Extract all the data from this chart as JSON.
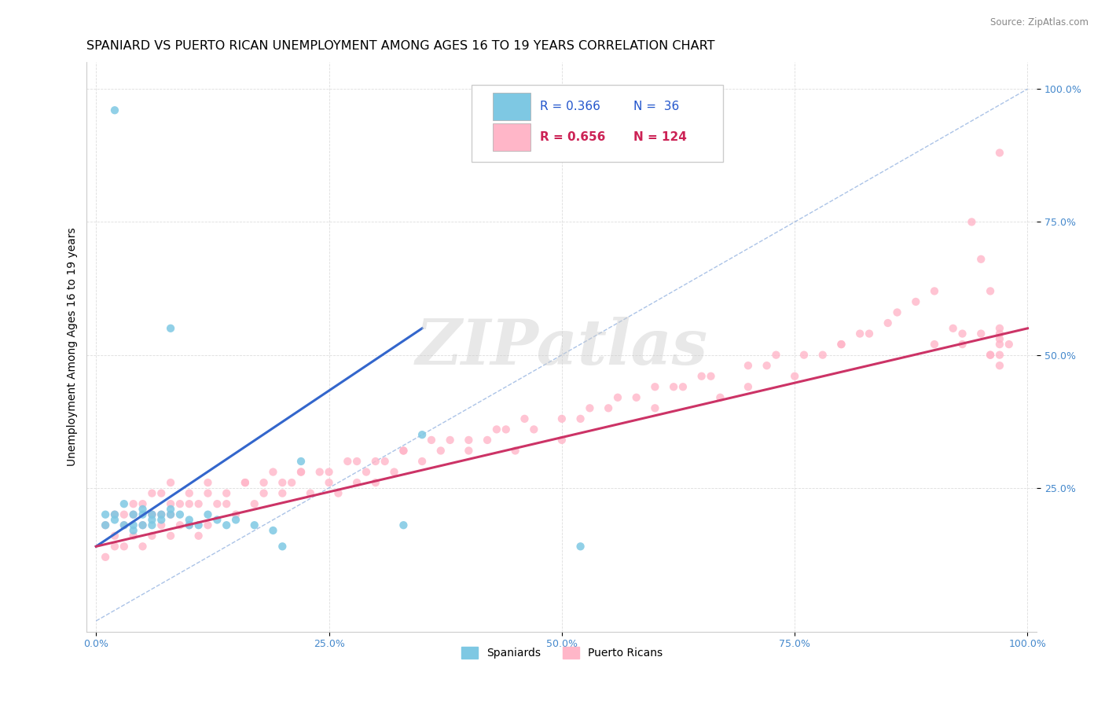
{
  "title": "SPANIARD VS PUERTO RICAN UNEMPLOYMENT AMONG AGES 16 TO 19 YEARS CORRELATION CHART",
  "source_text": "Source: ZipAtlas.com",
  "ylabel": "Unemployment Among Ages 16 to 19 years",
  "xlim": [
    -0.01,
    1.01
  ],
  "ylim": [
    -0.02,
    1.05
  ],
  "xticks": [
    0.0,
    0.25,
    0.5,
    0.75,
    1.0
  ],
  "yticks": [
    0.25,
    0.5,
    0.75,
    1.0
  ],
  "xtick_labels": [
    "0.0%",
    "25.0%",
    "50.0%",
    "75.0%",
    "100.0%"
  ],
  "ytick_labels": [
    "25.0%",
    "50.0%",
    "75.0%",
    "100.0%"
  ],
  "watermark": "ZIPatlas",
  "legend_r_blue": "R = 0.366",
  "legend_n_blue": "N =  36",
  "legend_r_pink": "R = 0.656",
  "legend_n_pink": "N = 124",
  "blue_color": "#7ec8e3",
  "pink_color": "#ffb6c8",
  "blue_line_color": "#3366cc",
  "pink_line_color": "#cc3366",
  "ref_line_color": "#aaaaaa",
  "sp_x": [
    0.01,
    0.01,
    0.02,
    0.02,
    0.02,
    0.03,
    0.03,
    0.04,
    0.04,
    0.04,
    0.05,
    0.05,
    0.05,
    0.06,
    0.06,
    0.06,
    0.07,
    0.07,
    0.08,
    0.08,
    0.09,
    0.1,
    0.1,
    0.11,
    0.12,
    0.13,
    0.14,
    0.15,
    0.17,
    0.19,
    0.2,
    0.33,
    0.35,
    0.52,
    0.22,
    0.08
  ],
  "sp_y": [
    0.2,
    0.18,
    0.96,
    0.2,
    0.19,
    0.22,
    0.18,
    0.2,
    0.18,
    0.17,
    0.21,
    0.2,
    0.18,
    0.2,
    0.19,
    0.18,
    0.2,
    0.19,
    0.21,
    0.2,
    0.2,
    0.19,
    0.18,
    0.18,
    0.2,
    0.19,
    0.18,
    0.19,
    0.18,
    0.17,
    0.14,
    0.18,
    0.35,
    0.14,
    0.3,
    0.55
  ],
  "pr_x": [
    0.01,
    0.01,
    0.02,
    0.02,
    0.02,
    0.03,
    0.03,
    0.03,
    0.04,
    0.04,
    0.04,
    0.05,
    0.05,
    0.05,
    0.06,
    0.06,
    0.06,
    0.07,
    0.07,
    0.07,
    0.08,
    0.08,
    0.08,
    0.09,
    0.09,
    0.1,
    0.1,
    0.11,
    0.11,
    0.12,
    0.12,
    0.13,
    0.14,
    0.15,
    0.16,
    0.17,
    0.18,
    0.19,
    0.2,
    0.21,
    0.22,
    0.23,
    0.24,
    0.25,
    0.26,
    0.27,
    0.28,
    0.29,
    0.3,
    0.31,
    0.32,
    0.33,
    0.35,
    0.37,
    0.38,
    0.4,
    0.42,
    0.44,
    0.45,
    0.47,
    0.5,
    0.52,
    0.55,
    0.58,
    0.6,
    0.62,
    0.65,
    0.67,
    0.7,
    0.72,
    0.75,
    0.78,
    0.8,
    0.82,
    0.85,
    0.88,
    0.9,
    0.92,
    0.93,
    0.95,
    0.96,
    0.97,
    0.97,
    0.97,
    0.97,
    0.97,
    0.06,
    0.08,
    0.1,
    0.12,
    0.14,
    0.16,
    0.18,
    0.2,
    0.22,
    0.25,
    0.28,
    0.3,
    0.33,
    0.36,
    0.4,
    0.43,
    0.46,
    0.5,
    0.53,
    0.56,
    0.6,
    0.63,
    0.66,
    0.7,
    0.73,
    0.76,
    0.8,
    0.83,
    0.86,
    0.9,
    0.93,
    0.96,
    0.98,
    0.97,
    0.97,
    0.96,
    0.95,
    0.94
  ],
  "pr_y": [
    0.18,
    0.12,
    0.16,
    0.2,
    0.14,
    0.18,
    0.14,
    0.2,
    0.16,
    0.2,
    0.22,
    0.14,
    0.18,
    0.22,
    0.16,
    0.2,
    0.24,
    0.18,
    0.2,
    0.24,
    0.16,
    0.2,
    0.26,
    0.18,
    0.22,
    0.18,
    0.24,
    0.16,
    0.22,
    0.18,
    0.26,
    0.22,
    0.24,
    0.2,
    0.26,
    0.22,
    0.26,
    0.28,
    0.24,
    0.26,
    0.28,
    0.24,
    0.28,
    0.26,
    0.24,
    0.3,
    0.26,
    0.28,
    0.26,
    0.3,
    0.28,
    0.32,
    0.3,
    0.32,
    0.34,
    0.32,
    0.34,
    0.36,
    0.32,
    0.36,
    0.34,
    0.38,
    0.4,
    0.42,
    0.4,
    0.44,
    0.46,
    0.42,
    0.44,
    0.48,
    0.46,
    0.5,
    0.52,
    0.54,
    0.56,
    0.6,
    0.62,
    0.55,
    0.52,
    0.54,
    0.5,
    0.52,
    0.54,
    0.48,
    0.53,
    0.5,
    0.2,
    0.22,
    0.22,
    0.24,
    0.22,
    0.26,
    0.24,
    0.26,
    0.28,
    0.28,
    0.3,
    0.3,
    0.32,
    0.34,
    0.34,
    0.36,
    0.38,
    0.38,
    0.4,
    0.42,
    0.44,
    0.44,
    0.46,
    0.48,
    0.5,
    0.5,
    0.52,
    0.54,
    0.58,
    0.52,
    0.54,
    0.5,
    0.52,
    0.88,
    0.55,
    0.62,
    0.68,
    0.75
  ],
  "blue_line_x": [
    0.0,
    0.35
  ],
  "blue_line_y": [
    0.14,
    0.55
  ],
  "pink_line_x": [
    0.0,
    1.0
  ],
  "pink_line_y": [
    0.14,
    0.55
  ],
  "title_fontsize": 11.5,
  "axis_fontsize": 10,
  "tick_fontsize": 9,
  "tick_color": "#4488cc"
}
